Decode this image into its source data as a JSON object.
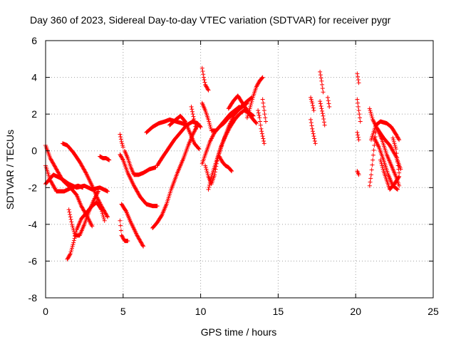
{
  "chart_data": {
    "type": "scatter",
    "title": "Day 360 of 2023, Sidereal Day-to-day VTEC variation (SDTVAR) for receiver pygr",
    "xlabel": "GPS time / hours",
    "ylabel": "SDTVAR / TECUs",
    "xlim": [
      0,
      25
    ],
    "ylim": [
      -8,
      6
    ],
    "xticks": [
      0,
      5,
      10,
      15,
      20,
      25
    ],
    "yticks": [
      -8,
      -6,
      -4,
      -2,
      0,
      2,
      4,
      6
    ],
    "xtick_labels": [
      "0",
      "5",
      "10",
      "15",
      "20",
      "25"
    ],
    "ytick_labels": [
      "-8",
      "-6",
      "-4",
      "-2",
      "0",
      "2",
      "4",
      "6"
    ],
    "grid": true,
    "marker": "plus",
    "color": "#ff0000",
    "tracks": [
      {
        "x": [
          0.0,
          0.3,
          0.7,
          1.1,
          1.6,
          2.0,
          2.3,
          2.7,
          3.0
        ],
        "y": [
          0.3,
          -0.4,
          -1.0,
          -1.6,
          -2.0,
          -2.4,
          -3.0,
          -3.6,
          -4.1
        ]
      },
      {
        "x": [
          0.0,
          0.2,
          0.5,
          1.0,
          1.5,
          2.0,
          2.5,
          3.0,
          3.5,
          4.0
        ],
        "y": [
          -1.8,
          -1.6,
          -1.3,
          -1.5,
          -1.8,
          -2.0,
          -1.9,
          -2.1,
          -2.0,
          -2.2
        ]
      },
      {
        "x": [
          0.0,
          0.3,
          0.7,
          1.2,
          1.7,
          2.1,
          2.4
        ],
        "y": [
          -0.8,
          -1.6,
          -2.2,
          -2.2,
          -2.0,
          -1.9,
          -2.0
        ]
      },
      {
        "x": [
          1.1,
          1.4,
          1.8,
          2.2,
          2.6,
          3.0,
          3.3,
          3.6,
          4.0
        ],
        "y": [
          0.4,
          0.3,
          -0.1,
          -0.6,
          -1.2,
          -1.9,
          -2.5,
          -3.0,
          -3.6
        ]
      },
      {
        "x": [
          1.5,
          1.7,
          1.9,
          2.2,
          2.5,
          2.8,
          3.1,
          3.4
        ],
        "y": [
          -3.2,
          -4.0,
          -4.6,
          -4.6,
          -4.0,
          -3.3,
          -2.7,
          -2.2
        ]
      },
      {
        "x": [
          1.4,
          1.6,
          1.8,
          2.0,
          2.3,
          2.7,
          3.0,
          3.3,
          3.6,
          3.8
        ],
        "y": [
          -5.9,
          -5.6,
          -5.0,
          -4.3,
          -3.7,
          -3.3,
          -3.0,
          -2.8,
          -3.2,
          -3.8
        ]
      },
      {
        "x": [
          3.5,
          3.7,
          3.9,
          4.1
        ],
        "y": [
          -0.3,
          -0.4,
          -0.4,
          -0.5
        ]
      },
      {
        "x": [
          4.8,
          4.9,
          5.0
        ],
        "y": [
          0.9,
          0.5,
          0.2
        ]
      },
      {
        "x": [
          4.8,
          5.0,
          5.3,
          5.7,
          6.1,
          6.5,
          6.9,
          7.2
        ],
        "y": [
          -0.2,
          -0.5,
          -1.2,
          -1.9,
          -2.5,
          -2.9,
          -3.0,
          -3.0
        ]
      },
      {
        "x": [
          4.8,
          4.9,
          5.1,
          5.3
        ],
        "y": [
          -3.8,
          -4.6,
          -4.9,
          -4.9
        ]
      },
      {
        "x": [
          4.9,
          5.2,
          5.5,
          5.9,
          6.3
        ],
        "y": [
          -2.9,
          -3.3,
          -3.9,
          -4.6,
          -5.2
        ]
      },
      {
        "x": [
          5.1,
          5.3,
          5.5,
          5.7,
          6.0,
          6.3,
          6.7,
          7.1
        ],
        "y": [
          0.0,
          -0.4,
          -0.9,
          -1.3,
          -1.3,
          -1.2,
          -1.0,
          -0.9
        ]
      },
      {
        "x": [
          6.9,
          7.2,
          7.5,
          7.8,
          8.1,
          8.5,
          8.9,
          9.2,
          9.5,
          9.8
        ],
        "y": [
          -4.2,
          -3.9,
          -3.5,
          -2.9,
          -2.1,
          -1.2,
          -0.4,
          0.3,
          0.9,
          1.4
        ]
      },
      {
        "x": [
          6.5,
          6.9,
          7.3,
          7.7,
          8.0,
          8.4,
          8.8,
          9.1
        ],
        "y": [
          1.0,
          1.3,
          1.5,
          1.6,
          1.7,
          1.6,
          1.5,
          1.4
        ]
      },
      {
        "x": [
          7.2,
          7.5,
          7.9,
          8.3,
          8.7,
          9.1,
          9.5,
          9.8,
          10.0
        ],
        "y": [
          -0.8,
          -0.4,
          0.1,
          0.6,
          1.0,
          1.4,
          1.6,
          1.5,
          1.3
        ]
      },
      {
        "x": [
          8.0,
          8.4,
          8.7,
          9.0,
          9.3,
          9.6,
          9.9
        ],
        "y": [
          1.4,
          1.7,
          1.9,
          1.6,
          1.0,
          0.4,
          0.1
        ]
      },
      {
        "x": [
          9.4,
          9.5,
          9.6,
          9.7
        ],
        "y": [
          2.4,
          2.0,
          1.6,
          1.2
        ]
      },
      {
        "x": [
          10.1,
          10.2,
          10.3,
          10.5
        ],
        "y": [
          4.5,
          4.0,
          3.6,
          3.3
        ]
      },
      {
        "x": [
          10.1,
          10.3,
          10.5,
          10.7,
          11.0,
          11.3,
          11.6,
          11.9,
          12.2,
          12.5
        ],
        "y": [
          2.6,
          2.2,
          1.7,
          1.1,
          1.1,
          1.4,
          1.7,
          2.0,
          2.2,
          2.4
        ]
      },
      {
        "x": [
          10.1,
          10.3,
          10.6,
          10.9,
          11.2,
          11.5,
          11.8,
          12.1,
          12.4,
          12.7,
          13.0
        ],
        "y": [
          -0.7,
          -0.2,
          0.5,
          1.0,
          1.3,
          1.5,
          1.8,
          2.0,
          2.2,
          2.4,
          2.6
        ]
      },
      {
        "x": [
          10.3,
          10.5,
          10.7,
          10.9,
          11.1,
          11.4,
          11.8,
          12.2,
          12.6,
          13.0,
          13.3
        ],
        "y": [
          -0.8,
          -1.4,
          -1.8,
          -1.3,
          -0.4,
          0.4,
          1.3,
          2.0,
          2.4,
          2.7,
          2.9
        ]
      },
      {
        "x": [
          10.5,
          10.7,
          11.0,
          11.3,
          11.6,
          11.9,
          12.2,
          12.5,
          12.8,
          13.1,
          13.4
        ],
        "y": [
          -2.1,
          -1.4,
          -0.6,
          0.2,
          0.8,
          1.3,
          1.7,
          2.0,
          2.2,
          2.1,
          1.9
        ]
      },
      {
        "x": [
          11.2,
          11.4,
          11.6,
          11.8,
          12.0
        ],
        "y": [
          -0.3,
          -0.6,
          -0.8,
          -0.9,
          -1.1
        ]
      },
      {
        "x": [
          11.8,
          12.1,
          12.4,
          12.7,
          13.0,
          13.3,
          13.6
        ],
        "y": [
          2.3,
          2.7,
          3.0,
          2.6,
          2.2,
          1.8,
          1.5
        ]
      },
      {
        "x": [
          13.0,
          13.2,
          13.4,
          13.6,
          13.8,
          14.0
        ],
        "y": [
          1.8,
          2.4,
          3.0,
          3.5,
          3.8,
          4.0
        ]
      },
      {
        "x": [
          13.7,
          13.8,
          13.9,
          14.0,
          14.1
        ],
        "y": [
          2.2,
          1.8,
          1.2,
          0.8,
          0.4
        ]
      },
      {
        "x": [
          14.0,
          14.1,
          14.2
        ],
        "y": [
          2.8,
          2.2,
          1.6
        ]
      },
      {
        "x": [
          17.1,
          17.2,
          17.3
        ],
        "y": [
          2.9,
          2.6,
          2.2
        ]
      },
      {
        "x": [
          17.1,
          17.2,
          17.3,
          17.4
        ],
        "y": [
          1.7,
          1.2,
          0.8,
          0.4
        ]
      },
      {
        "x": [
          17.7,
          17.8,
          17.9
        ],
        "y": [
          4.3,
          3.8,
          3.2
        ]
      },
      {
        "x": [
          17.7,
          17.8,
          17.9,
          18.0
        ],
        "y": [
          2.7,
          2.3,
          1.9,
          1.4
        ]
      },
      {
        "x": [
          18.2,
          18.3
        ],
        "y": [
          2.9,
          2.4
        ]
      },
      {
        "x": [
          20.1,
          20.2
        ],
        "y": [
          4.2,
          3.7
        ]
      },
      {
        "x": [
          20.1,
          20.2,
          20.3
        ],
        "y": [
          2.8,
          2.2,
          1.6
        ]
      },
      {
        "x": [
          20.1,
          20.2
        ],
        "y": [
          1.0,
          0.6
        ]
      },
      {
        "x": [
          20.1,
          20.2
        ],
        "y": [
          -1.1,
          -1.3
        ]
      },
      {
        "x": [
          20.9,
          21.0,
          21.1,
          21.2,
          21.3
        ],
        "y": [
          -1.9,
          -1.3,
          -0.5,
          0.3,
          1.0
        ]
      },
      {
        "x": [
          20.9,
          21.1,
          21.4,
          21.8,
          22.2,
          22.6,
          22.9
        ],
        "y": [
          2.3,
          1.7,
          1.2,
          0.7,
          0.3,
          -0.3,
          -1.0
        ]
      },
      {
        "x": [
          21.0,
          21.3,
          21.6,
          22.0,
          22.3,
          22.6,
          22.8
        ],
        "y": [
          0.6,
          1.4,
          1.6,
          1.5,
          1.3,
          0.9,
          0.6
        ]
      },
      {
        "x": [
          21.2,
          21.5,
          21.8,
          22.1,
          22.4,
          22.7
        ],
        "y": [
          0.7,
          0.2,
          -0.5,
          -1.3,
          -1.9,
          -2.1
        ]
      },
      {
        "x": [
          21.4,
          21.7,
          22.0,
          22.3,
          22.6,
          22.8
        ],
        "y": [
          1.2,
          0.6,
          -0.2,
          -0.8,
          -1.4,
          -1.9
        ]
      },
      {
        "x": [
          21.6,
          21.8,
          22.0,
          22.2,
          22.5,
          22.8
        ],
        "y": [
          -0.5,
          -1.1,
          -1.6,
          -2.1,
          -1.8,
          -1.4
        ]
      },
      {
        "x": [
          22.4,
          22.6,
          22.7,
          22.8
        ],
        "y": [
          0.7,
          0.1,
          -0.6,
          -1.2
        ]
      }
    ]
  }
}
